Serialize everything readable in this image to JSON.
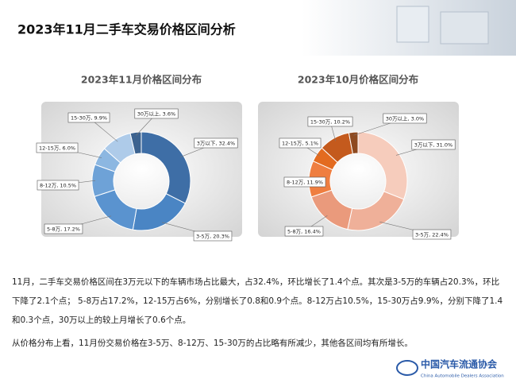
{
  "title": "2023年11月二手车交易价格区间分析",
  "chart_data": [
    {
      "type": "pie",
      "donut": true,
      "title": "2023年11月价格区间分布",
      "values": [
        32.4,
        20.3,
        17.2,
        10.5,
        6.0,
        9.9,
        3.6
      ],
      "value_labels": [
        "3万以下, 32.4%",
        "3-5万, 20.3%",
        "5-8万, 17.2%",
        "8-12万, 10.5%",
        "12-15万, 6.0%",
        "15-30万, 9.9%",
        "30万以上, 3.6%"
      ],
      "colors": [
        "#3e6ea6",
        "#4a85c4",
        "#5a93cf",
        "#6ea2d7",
        "#8cb7e1",
        "#aecbe9",
        "#3c6390"
      ]
    },
    {
      "type": "pie",
      "donut": true,
      "title": "2023年10月价格区间分布",
      "values": [
        31.0,
        22.4,
        16.4,
        11.9,
        5.1,
        10.2,
        3.0
      ],
      "value_labels": [
        "3万以下, 31.0%",
        "3-5万, 22.4%",
        "5-8万, 16.4%",
        "8-12万, 11.9%",
        "12-15万, 5.1%",
        "15-30万, 10.2%",
        "30万以上, 3.0%"
      ],
      "colors": [
        "#f6ccbc",
        "#efb099",
        "#ea9a7c",
        "#ef7e40",
        "#e36b20",
        "#c45a1d",
        "#8e4a20"
      ]
    }
  ],
  "paragraphs": [
    "11月，二手车交易价格区间在3万元以下的车辆市场占比最大，占32.4%，环比增长了1.4个点。其次是3-5万的车辆占20.3%，环比下降了2.1个点； 5-8万占17.2%，12-15万占6%，分别增长了0.8和0.9个点。8-12万占10.5%，15-30万占9.9%，分别下降了1.4和0.3个点，30万以上的较上月增长了0.6个点。",
    "从价格分布上看，11月份交易价格在3-5万、8-12万、15-30万的占比略有所减少，其他各区间均有所增长。"
  ],
  "logo": {
    "name": "中国汽车流通协会",
    "subtitle": "China Automobile Dealers Association"
  }
}
